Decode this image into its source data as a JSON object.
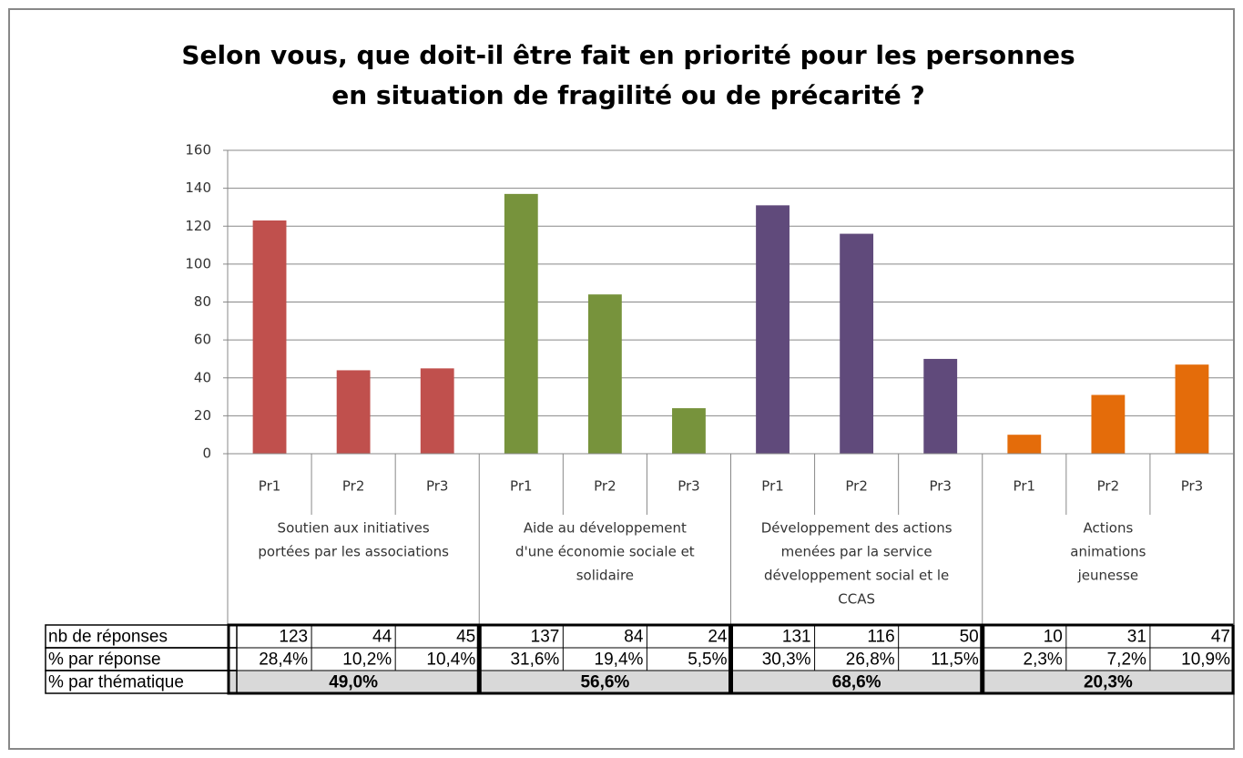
{
  "chart_data": {
    "type": "bar",
    "title": [
      "Selon vous, que doit-il être fait en priorité pour les personnes",
      "en situation de fragilité ou de précarité ?"
    ],
    "ylim": [
      0,
      160
    ],
    "yticks": [
      0,
      20,
      40,
      60,
      80,
      100,
      120,
      140,
      160
    ],
    "grid": true,
    "row_labels": [
      "nb de réponses",
      "% par réponse",
      "% par thématique"
    ],
    "groups": [
      {
        "label": [
          "Soutien aux initiatives",
          "portées par les associations"
        ],
        "color": "#c0504d",
        "categories": [
          "Pr1",
          "Pr2",
          "Pr3"
        ],
        "values": [
          123,
          44,
          45
        ],
        "percents": [
          "28,4%",
          "10,2%",
          "10,4%"
        ],
        "theme_percent": "49,0%"
      },
      {
        "label": [
          "Aide au développement",
          "d'une économie sociale et",
          "solidaire"
        ],
        "color": "#77933c",
        "categories": [
          "Pr1",
          "Pr2",
          "Pr3"
        ],
        "values": [
          137,
          84,
          24
        ],
        "percents": [
          "31,6%",
          "19,4%",
          "5,5%"
        ],
        "theme_percent": "56,6%"
      },
      {
        "label": [
          "Développement des actions",
          "menées par la service",
          "développement social et le",
          "CCAS"
        ],
        "color": "#604a7b",
        "categories": [
          "Pr1",
          "Pr2",
          "Pr3"
        ],
        "values": [
          131,
          116,
          50
        ],
        "percents": [
          "30,3%",
          "26,8%",
          "11,5%"
        ],
        "theme_percent": "68,6%"
      },
      {
        "label": [
          "Actions",
          "animations",
          "jeunesse"
        ],
        "color": "#e46c0a",
        "categories": [
          "Pr1",
          "Pr2",
          "Pr3"
        ],
        "values": [
          10,
          31,
          47
        ],
        "percents": [
          "2,3%",
          "7,2%",
          "10,9%"
        ],
        "theme_percent": "20,3%"
      }
    ]
  }
}
